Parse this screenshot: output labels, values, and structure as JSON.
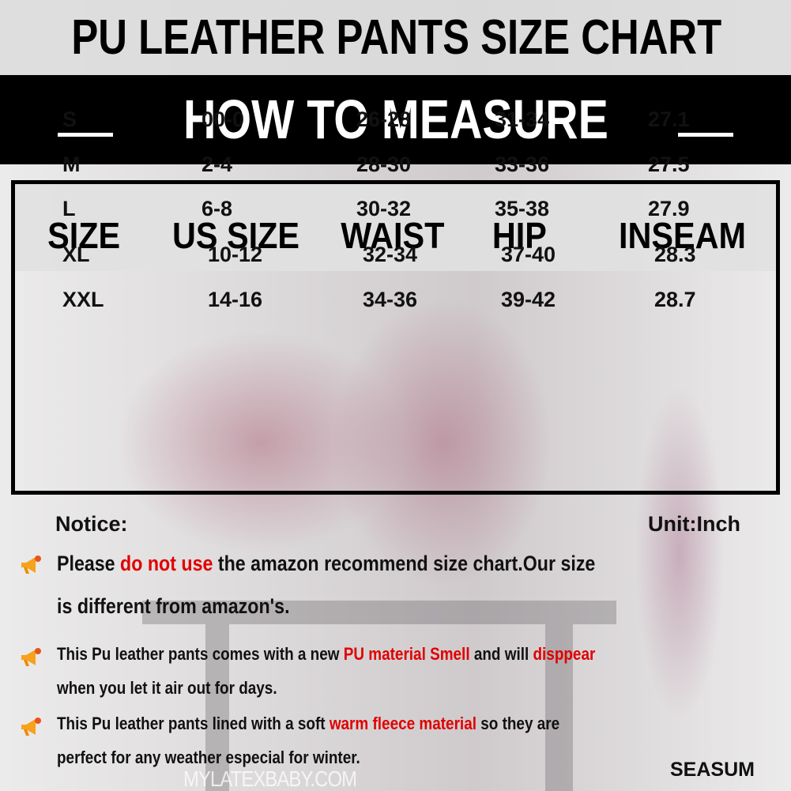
{
  "title": "PU LEATHER PANTS SIZE CHART",
  "subtitle": "HOW TO MEASURE",
  "table": {
    "headers": [
      "SIZE",
      "US SIZE",
      "WAIST",
      "HIP",
      "INSEAM"
    ],
    "rows": [
      [
        "S",
        "00-0",
        "26-28",
        "31-34",
        "27.1"
      ],
      [
        "M",
        "2-4",
        "28-30",
        "33-36",
        "27.5"
      ],
      [
        "L",
        "6-8",
        "30-32",
        "35-38",
        "27.9"
      ],
      [
        "XL",
        "10-12",
        "32-34",
        "37-40",
        "28.3"
      ],
      [
        "XXL",
        "14-16",
        "34-36",
        "39-42",
        "28.7"
      ]
    ]
  },
  "notice_label": "Notice:",
  "unit_label": "Unit:Inch",
  "notes": [
    {
      "a": "Please ",
      "b": "do not use",
      "c": " the amazon recommend size chart.Our size",
      "d": "is different from amazon's."
    },
    {
      "a": "This Pu leather pants comes with a new ",
      "b": "PU material Smell",
      "c": " and will ",
      "e": "disppear",
      "d": "when you let it air out for days."
    },
    {
      "a": "This Pu leather pants lined with a soft ",
      "b": "warm fleece material",
      "c": " so they are",
      "d": "perfect for any weather especial for winter."
    }
  ],
  "brand": "SEASUM",
  "watermark": "MYLATEXBABY.COM",
  "icons": {
    "bullet": "megaphone-icon"
  },
  "colors": {
    "highlight": "#e00000",
    "band": "#000000"
  }
}
